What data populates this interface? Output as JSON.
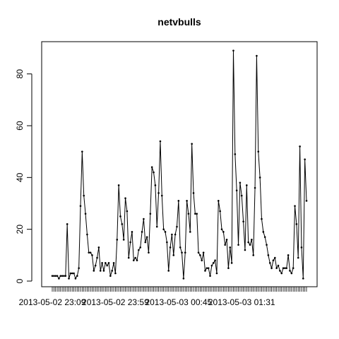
{
  "chart_data": {
    "type": "line",
    "title": "netvbulls",
    "xlabel": "",
    "ylabel": "",
    "ylim": [
      0,
      90
    ],
    "y_ticks": [
      0,
      20,
      40,
      60,
      80
    ],
    "x_tick_labels": [
      "2013-05-02 23:09",
      "2013-05-02 23:59",
      "2013-05-03 00:45",
      "2013-05-03 01:31"
    ],
    "x_tick_label_indices": [
      0,
      38,
      76,
      114
    ],
    "grid": false,
    "legend": "none",
    "line_color": "#000000",
    "series": [
      {
        "values": [
          2,
          2,
          2,
          2,
          1,
          2,
          2,
          2,
          2,
          22,
          1,
          3,
          3,
          3,
          1,
          2,
          5,
          29,
          50,
          33,
          26,
          18,
          11,
          11,
          10,
          4,
          6,
          9,
          13,
          4,
          7,
          4,
          7,
          6,
          7,
          2,
          4,
          7,
          3,
          16,
          37,
          25,
          22,
          16,
          32,
          27,
          9,
          15,
          19,
          8,
          9,
          8,
          12,
          13,
          19,
          24,
          15,
          17,
          11,
          26,
          44,
          42,
          37,
          21,
          34,
          54,
          33,
          20,
          19,
          15,
          4,
          13,
          18,
          10,
          18,
          21,
          31,
          13,
          11,
          1,
          11,
          31,
          26,
          19,
          53,
          34,
          26,
          26,
          11,
          10,
          8,
          11,
          4,
          5,
          5,
          2,
          6,
          7,
          8,
          3,
          31,
          27,
          20,
          19,
          14,
          16,
          5,
          13,
          7,
          89,
          49,
          35,
          14,
          38,
          33,
          23,
          12,
          37,
          15,
          14,
          16,
          10,
          36,
          87,
          50,
          40,
          24,
          19,
          17,
          14,
          10,
          7,
          5,
          8,
          9,
          5,
          6,
          4,
          3,
          5,
          5,
          5,
          10,
          4,
          3,
          5,
          29,
          22,
          9,
          52,
          13,
          1,
          47,
          31
        ]
      }
    ]
  }
}
